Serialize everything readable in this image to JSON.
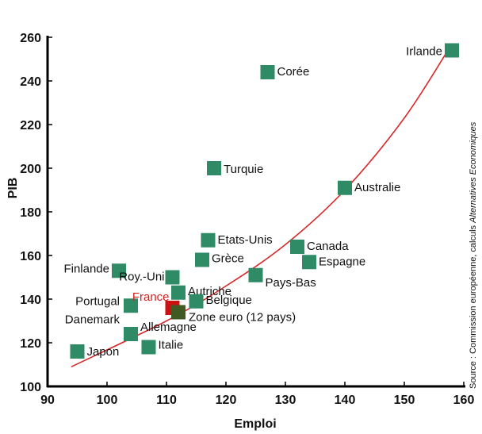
{
  "chart_data": {
    "type": "scatter",
    "xlabel": "Emploi",
    "ylabel": "PIB",
    "xlim": [
      90,
      160
    ],
    "ylim": [
      100,
      260
    ],
    "xticks": [
      90,
      100,
      110,
      120,
      130,
      140,
      150,
      160
    ],
    "yticks": [
      100,
      120,
      140,
      160,
      180,
      200,
      220,
      240,
      260
    ],
    "grid": false,
    "colors": {
      "point": "#2e8b66",
      "highlight": "#cc1111",
      "euro": "#3f5a22",
      "curve": "#d62a2a"
    },
    "points": [
      {
        "label": "Irlande",
        "x": 158,
        "y": 254
      },
      {
        "label": "Corée",
        "x": 127,
        "y": 244
      },
      {
        "label": "Turquie",
        "x": 118,
        "y": 200
      },
      {
        "label": "Australie",
        "x": 140,
        "y": 191
      },
      {
        "label": "Etats-Unis",
        "x": 117,
        "y": 167
      },
      {
        "label": "Canada",
        "x": 132,
        "y": 164
      },
      {
        "label": "Grèce",
        "x": 116,
        "y": 158
      },
      {
        "label": "Espagne",
        "x": 134,
        "y": 157
      },
      {
        "label": "Finlande",
        "x": 102,
        "y": 153
      },
      {
        "label": "Pays-Bas",
        "x": 125,
        "y": 151
      },
      {
        "label": "Roy.-Uni",
        "x": 111,
        "y": 150
      },
      {
        "label": "Autriche",
        "x": 112,
        "y": 143
      },
      {
        "label": "Belgique",
        "x": 115,
        "y": 139
      },
      {
        "label": "Portugal",
        "x": 104,
        "y": 137
      },
      {
        "label": "France",
        "x": 111,
        "y": 136,
        "highlight": true
      },
      {
        "label": "Danemark",
        "x": 104,
        "y": 137
      },
      {
        "label": "Zone euro (12 pays)",
        "x": 112,
        "y": 134,
        "euro": true
      },
      {
        "label": "Allemagne",
        "x": 104,
        "y": 124
      },
      {
        "label": "Italie",
        "x": 107,
        "y": 118
      },
      {
        "label": "Japon",
        "x": 95,
        "y": 116
      }
    ],
    "trend": {
      "x": [
        94,
        110,
        120,
        130,
        140,
        150,
        158
      ],
      "y": [
        109,
        130,
        146,
        165,
        190,
        223,
        257
      ]
    }
  },
  "source": {
    "prefix": "Source : Commission européenne, calculs ",
    "italic": "Alternatives Economiques"
  }
}
